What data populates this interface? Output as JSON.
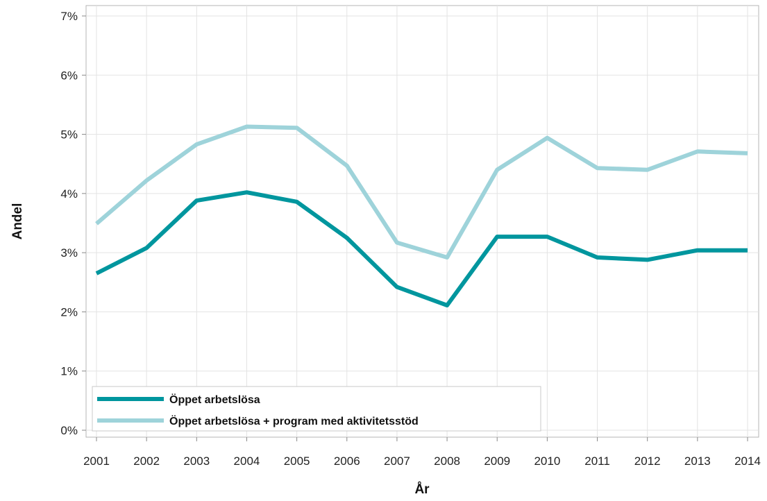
{
  "chart_data": {
    "type": "line",
    "xlabel": "År",
    "ylabel": "Andel",
    "ylim": [
      0,
      7
    ],
    "y_tick_labels": [
      "0%",
      "1%",
      "2%",
      "3%",
      "4%",
      "5%",
      "6%",
      "7%"
    ],
    "x": [
      2001,
      2002,
      2003,
      2004,
      2005,
      2006,
      2007,
      2008,
      2009,
      2010,
      2011,
      2012,
      2013,
      2014
    ],
    "grid": true,
    "legend_position": "bottom-left",
    "series": [
      {
        "name": "Öppet arbetslösa",
        "color": "#00969e",
        "values": [
          2.65,
          3.08,
          3.88,
          4.02,
          3.86,
          3.25,
          2.42,
          2.11,
          3.27,
          3.27,
          2.92,
          2.88,
          3.04,
          3.04
        ]
      },
      {
        "name": "Öppet arbetslösa + program med aktivitetsstöd",
        "color": "#9ed3da",
        "values": [
          3.49,
          4.22,
          4.83,
          5.13,
          5.11,
          4.47,
          3.17,
          2.92,
          4.4,
          4.94,
          4.43,
          4.4,
          4.71,
          4.68
        ]
      }
    ]
  }
}
